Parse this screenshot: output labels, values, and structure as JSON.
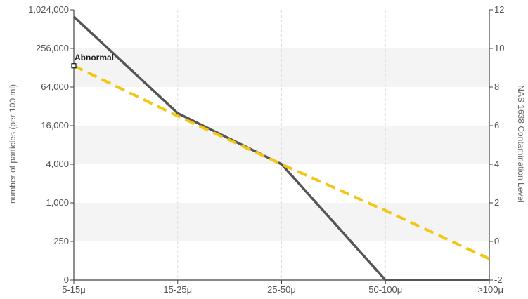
{
  "chart_data": {
    "type": "line",
    "categories": [
      "5-15μ",
      "15-25μ",
      "25-50μ",
      "50-100μ",
      ">100μ"
    ],
    "y_left": {
      "label": "number of particles (per 100 ml)",
      "scale": "log2",
      "ticks": [
        "0",
        "250",
        "1,000",
        "4,000",
        "16,000",
        "64,000",
        "256,000",
        "1,024,000"
      ],
      "range": [
        "0",
        "1,024,000"
      ]
    },
    "y_right": {
      "label": "NAS 1638 Contamination Level",
      "ticks": [
        "-2",
        "0",
        "2",
        "4",
        "6",
        "8",
        "10",
        "12"
      ],
      "range": [
        -2,
        12
      ]
    },
    "series": [
      {
        "name": "",
        "axis": "left",
        "color": "#555555",
        "style": "solid",
        "values": [
          800000,
          25000,
          4000,
          20,
          35
        ]
      },
      {
        "name": "",
        "axis": "right",
        "color": "#f3c613",
        "style": "dashed",
        "values": [
          9.1,
          6.5,
          4.0,
          1.6,
          -0.9
        ]
      }
    ],
    "annotations": [
      {
        "text": "Abnormal",
        "category": "5-15μ",
        "value": 9.1
      }
    ],
    "bands": "alternating light-gray horizontal bands",
    "grid": "vertical dashed gridlines",
    "legend": "none"
  }
}
